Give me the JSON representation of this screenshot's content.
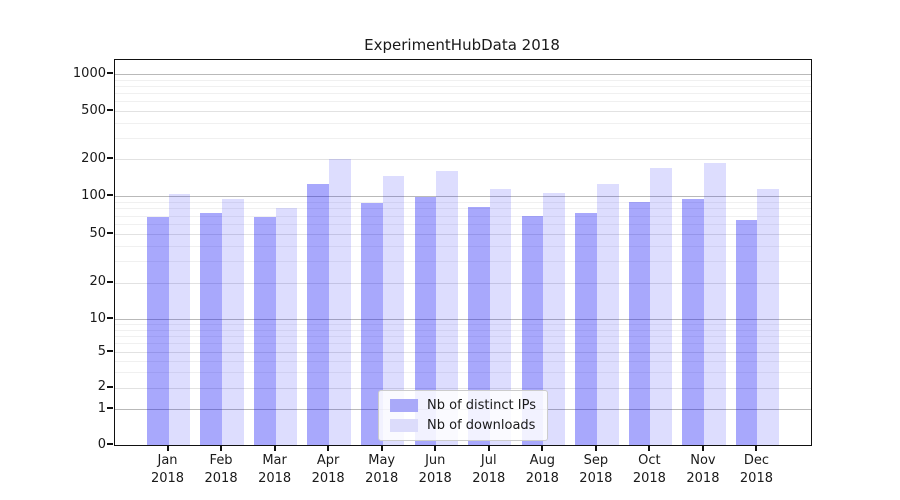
{
  "chart_data": {
    "type": "bar",
    "title": "ExperimentHubData 2018",
    "categories": [
      "Jan",
      "Feb",
      "Mar",
      "Apr",
      "May",
      "Jun",
      "Jul",
      "Aug",
      "Sep",
      "Oct",
      "Nov",
      "Dec"
    ],
    "x_tick_sub_label": "2018",
    "series": [
      {
        "name": "Nb of distinct IPs",
        "color": "#a9a9f9",
        "fill": "rgba(0,0,245,0.34)",
        "values": [
          68,
          73,
          68,
          125,
          88,
          99,
          82,
          69,
          74,
          90,
          94,
          65
        ]
      },
      {
        "name": "Nb of downloads",
        "color": "#dcdcfb",
        "fill": "rgba(0,0,245,0.135)",
        "values": [
          103,
          94,
          80,
          200,
          145,
          160,
          113,
          106,
          126,
          168,
          187,
          115
        ]
      }
    ],
    "y_axis": {
      "scale": "symlog",
      "ticks": [
        0,
        1,
        2,
        5,
        10,
        20,
        50,
        100,
        200,
        500,
        1000
      ],
      "major_ticks": [
        1,
        10,
        100,
        1000
      ],
      "range_top": 1300
    },
    "grid": true,
    "legend_position": "lower center"
  }
}
